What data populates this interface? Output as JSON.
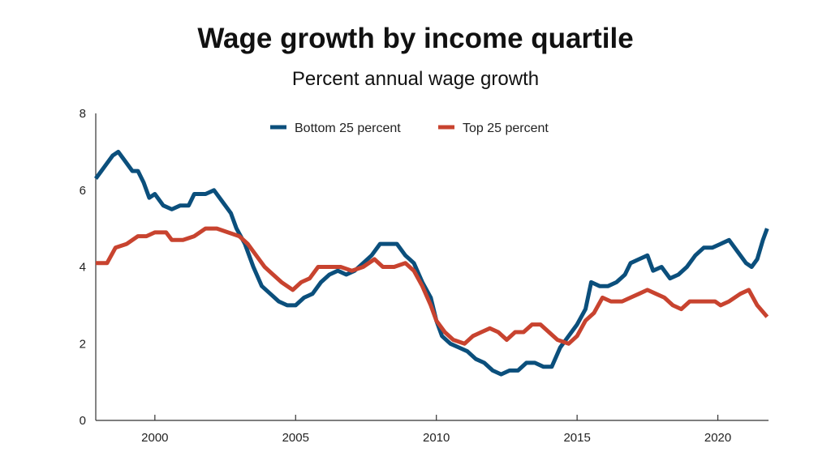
{
  "chart_data": {
    "type": "line",
    "title": "Wage growth by income quartile",
    "subtitle": "Percent annual wage growth",
    "xlabel": "",
    "ylabel": "",
    "xlim": [
      1997.9,
      2021.8
    ],
    "ylim": [
      0,
      8
    ],
    "xticks": [
      2000,
      2005,
      2010,
      2015,
      2020
    ],
    "xtick_labels": [
      "2000",
      "2005",
      "2010",
      "2015",
      "2020"
    ],
    "yticks": [
      0,
      2,
      4,
      6,
      8
    ],
    "ytick_labels": [
      "0",
      "2",
      "4",
      "6",
      "8"
    ],
    "grid": false,
    "legend_position": "top-center",
    "series": [
      {
        "name": "Bottom 25 percent",
        "color": "#0b4f7c",
        "x": [
          1997.9,
          1998.2,
          1998.5,
          1998.7,
          1998.9,
          1999.2,
          1999.4,
          1999.6,
          1999.8,
          2000.0,
          2000.3,
          2000.6,
          2000.9,
          2001.2,
          2001.4,
          2001.8,
          2002.1,
          2002.4,
          2002.7,
          2002.9,
          2003.2,
          2003.5,
          2003.8,
          2004.1,
          2004.4,
          2004.7,
          2005.0,
          2005.3,
          2005.6,
          2005.9,
          2006.2,
          2006.5,
          2006.8,
          2007.1,
          2007.4,
          2007.7,
          2008.0,
          2008.3,
          2008.6,
          2008.9,
          2009.2,
          2009.5,
          2009.8,
          2010.0,
          2010.2,
          2010.5,
          2010.8,
          2011.1,
          2011.4,
          2011.7,
          2012.0,
          2012.3,
          2012.6,
          2012.9,
          2013.2,
          2013.5,
          2013.8,
          2014.1,
          2014.4,
          2014.7,
          2015.0,
          2015.3,
          2015.5,
          2015.8,
          2016.1,
          2016.4,
          2016.7,
          2016.9,
          2017.2,
          2017.5,
          2017.7,
          2018.0,
          2018.3,
          2018.6,
          2018.9,
          2019.2,
          2019.5,
          2019.8,
          2020.1,
          2020.4,
          2020.7,
          2021.0,
          2021.2,
          2021.4,
          2021.6,
          2021.75
        ],
        "values": [
          6.3,
          6.6,
          6.9,
          7.0,
          6.8,
          6.5,
          6.5,
          6.2,
          5.8,
          5.9,
          5.6,
          5.5,
          5.6,
          5.6,
          5.9,
          5.9,
          6.0,
          5.7,
          5.4,
          5.0,
          4.6,
          4.0,
          3.5,
          3.3,
          3.1,
          3.0,
          3.0,
          3.2,
          3.3,
          3.6,
          3.8,
          3.9,
          3.8,
          3.9,
          4.1,
          4.3,
          4.6,
          4.6,
          4.6,
          4.3,
          4.1,
          3.6,
          3.2,
          2.6,
          2.2,
          2.0,
          1.9,
          1.8,
          1.6,
          1.5,
          1.3,
          1.2,
          1.3,
          1.3,
          1.5,
          1.5,
          1.4,
          1.4,
          1.9,
          2.2,
          2.5,
          2.9,
          3.6,
          3.5,
          3.5,
          3.6,
          3.8,
          4.1,
          4.2,
          4.3,
          3.9,
          4.0,
          3.7,
          3.8,
          4.0,
          4.3,
          4.5,
          4.5,
          4.6,
          4.7,
          4.4,
          4.1,
          4.0,
          4.2,
          4.7,
          5.0
        ]
      },
      {
        "name": "Top 25 percent",
        "color": "#c8432f",
        "x": [
          1997.9,
          1998.3,
          1998.6,
          1999.0,
          1999.4,
          1999.7,
          2000.0,
          2000.4,
          2000.6,
          2001.0,
          2001.4,
          2001.8,
          2002.2,
          2002.6,
          2003.0,
          2003.3,
          2003.6,
          2003.9,
          2004.2,
          2004.5,
          2004.9,
          2005.2,
          2005.5,
          2005.8,
          2006.2,
          2006.6,
          2007.0,
          2007.4,
          2007.8,
          2008.1,
          2008.5,
          2008.9,
          2009.2,
          2009.5,
          2009.8,
          2010.0,
          2010.3,
          2010.6,
          2011.0,
          2011.3,
          2011.6,
          2011.9,
          2012.2,
          2012.5,
          2012.8,
          2013.1,
          2013.4,
          2013.7,
          2014.0,
          2014.3,
          2014.7,
          2015.0,
          2015.3,
          2015.6,
          2015.9,
          2016.2,
          2016.6,
          2016.9,
          2017.2,
          2017.5,
          2017.8,
          2018.1,
          2018.4,
          2018.7,
          2019.0,
          2019.3,
          2019.6,
          2019.9,
          2020.1,
          2020.4,
          2020.8,
          2021.1,
          2021.4,
          2021.75
        ],
        "values": [
          4.1,
          4.1,
          4.5,
          4.6,
          4.8,
          4.8,
          4.9,
          4.9,
          4.7,
          4.7,
          4.8,
          5.0,
          5.0,
          4.9,
          4.8,
          4.6,
          4.3,
          4.0,
          3.8,
          3.6,
          3.4,
          3.6,
          3.7,
          4.0,
          4.0,
          4.0,
          3.9,
          4.0,
          4.2,
          4.0,
          4.0,
          4.1,
          3.9,
          3.5,
          3.0,
          2.6,
          2.3,
          2.1,
          2.0,
          2.2,
          2.3,
          2.4,
          2.3,
          2.1,
          2.3,
          2.3,
          2.5,
          2.5,
          2.3,
          2.1,
          2.0,
          2.2,
          2.6,
          2.8,
          3.2,
          3.1,
          3.1,
          3.2,
          3.3,
          3.4,
          3.3,
          3.2,
          3.0,
          2.9,
          3.1,
          3.1,
          3.1,
          3.1,
          3.0,
          3.1,
          3.3,
          3.4,
          3.0,
          2.7
        ]
      }
    ]
  }
}
